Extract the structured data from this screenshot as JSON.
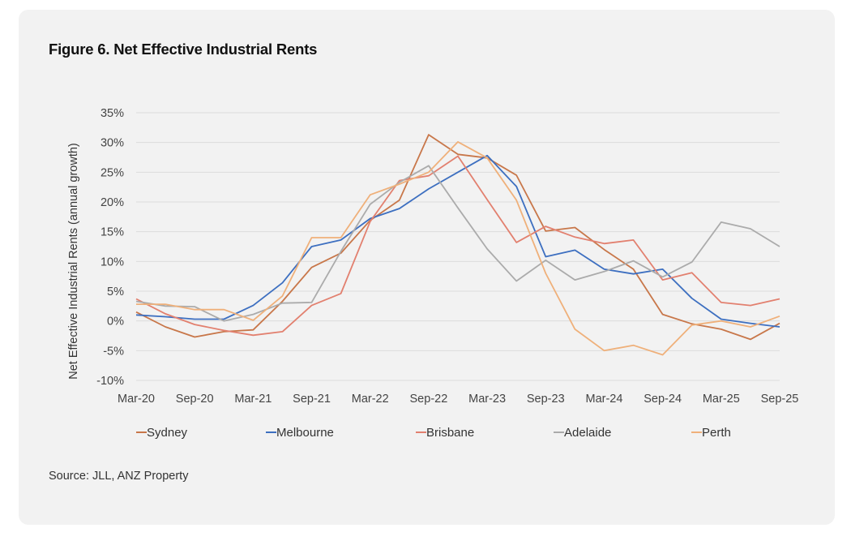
{
  "figure": {
    "title": "Figure 6. Net Effective Industrial Rents",
    "source": "Source: JLL, ANZ Property"
  },
  "chart_data": {
    "type": "line",
    "title": "Figure 6. Net Effective Industrial Rents",
    "xlabel": "",
    "ylabel": "Net Effective Industrial Rents (annual growth)",
    "ylim": [
      -10,
      35
    ],
    "yticks": [
      35,
      30,
      25,
      20,
      15,
      10,
      5,
      0,
      -5,
      -10
    ],
    "ytick_labels": [
      "35%",
      "30%",
      "25%",
      "20%",
      "15%",
      "10%",
      "5%",
      "0%",
      "-5%",
      "-10%"
    ],
    "x": [
      "Mar-20",
      "Jun-20",
      "Sep-20",
      "Dec-20",
      "Mar-21",
      "Jun-21",
      "Sep-21",
      "Dec-21",
      "Mar-22",
      "Jun-22",
      "Sep-22",
      "Dec-22",
      "Mar-23",
      "Jun-23",
      "Sep-23",
      "Dec-23",
      "Mar-24",
      "Jun-24",
      "Sep-24",
      "Dec-24",
      "Mar-25",
      "Jun-25",
      "Sep-25"
    ],
    "xtick_labels": [
      "Mar-20",
      "Sep-20",
      "Mar-21",
      "Sep-21",
      "Mar-22",
      "Sep-22",
      "Mar-23",
      "Sep-23",
      "Mar-24",
      "Sep-24",
      "Mar-25",
      "Sep-25"
    ],
    "grid": true,
    "legend_position": "bottom",
    "series": [
      {
        "name": "Sydney",
        "color": "#c8774a",
        "values": [
          1.5,
          -1.0,
          -2.7,
          -1.8,
          -1.5,
          3.3,
          9.0,
          11.4,
          16.9,
          20.3,
          31.3,
          28.0,
          27.4,
          24.5,
          15.1,
          15.7,
          12.0,
          8.7,
          1.1,
          -0.5,
          -1.4,
          -3.1,
          -0.4
        ]
      },
      {
        "name": "Melbourne",
        "color": "#3d6fc0",
        "values": [
          1.0,
          0.7,
          0.3,
          0.3,
          2.6,
          6.4,
          12.5,
          13.6,
          17.2,
          18.9,
          22.2,
          25.0,
          27.8,
          22.6,
          10.8,
          11.9,
          8.7,
          7.9,
          8.7,
          3.8,
          0.3,
          -0.4,
          -1.0
        ]
      },
      {
        "name": "Brisbane",
        "color": "#e2806f",
        "values": [
          3.7,
          1.2,
          -0.6,
          -1.6,
          -2.4,
          -1.8,
          2.6,
          4.6,
          16.7,
          23.6,
          24.4,
          27.7,
          20.4,
          13.2,
          15.9,
          14.1,
          13.0,
          13.6,
          6.9,
          8.1,
          3.1,
          2.6,
          3.7
        ]
      },
      {
        "name": "Adelaide",
        "color": "#ababab",
        "values": [
          3.3,
          2.5,
          2.4,
          0.0,
          1.1,
          3.0,
          3.1,
          11.7,
          19.6,
          23.3,
          26.1,
          19.0,
          12.1,
          6.7,
          10.2,
          6.9,
          8.3,
          10.1,
          7.4,
          9.9,
          16.6,
          15.5,
          12.5
        ]
      },
      {
        "name": "Perth",
        "color": "#efb07a",
        "values": [
          2.8,
          2.8,
          1.9,
          1.9,
          0.1,
          4.2,
          14.0,
          14.0,
          21.2,
          23.0,
          25.0,
          30.1,
          27.4,
          20.3,
          8.0,
          -1.4,
          -5.0,
          -4.1,
          -5.7,
          -0.7,
          0.0,
          -1.0,
          0.8
        ]
      }
    ]
  }
}
